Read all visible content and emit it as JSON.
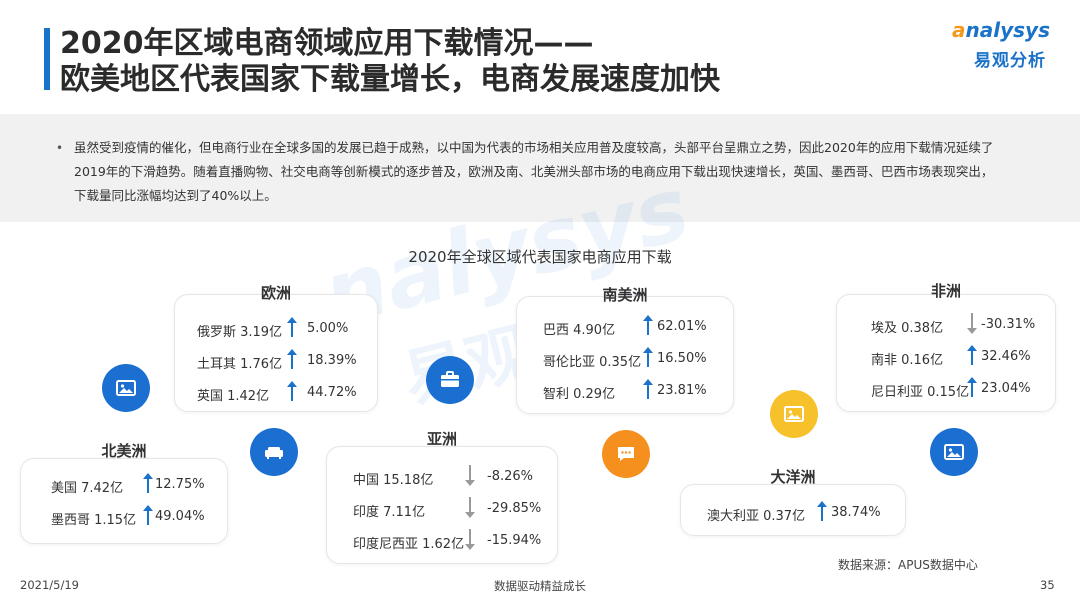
{
  "header": {
    "title_line1": "2020年区域电商领域应用下载情况——",
    "title_line2": "欧美地区代表国家下载量增长，电商发展速度加快"
  },
  "logo": {
    "en": "nalysys",
    "en_first": "a",
    "cn": "易观分析"
  },
  "watermark": {
    "en": "nalysys",
    "cn": "易观分析"
  },
  "summary": {
    "bullet": "•",
    "text": "虽然受到疫情的催化，但电商行业在全球多国的发展已趋于成熟，以中国为代表的市场相关应用普及度较高，头部平台呈鼎立之势，因此2020年的应用下载情况延续了2019年的下滑趋势。随着直播购物、社交电商等创新模式的逐步普及，欧洲及南、北美洲头部市场的电商应用下载出现快速增长，英国、墨西哥、巴西市场表现突出，下载量同比涨幅均达到了40%以上。"
  },
  "chart_data": {
    "type": "table",
    "title": "2020年全球区域代表国家电商应用下载",
    "regions": [
      {
        "name": "欧洲",
        "rows": [
          {
            "country": "俄罗斯",
            "downloads": "3.19亿",
            "growth": "5.00%",
            "direction": "up"
          },
          {
            "country": "土耳其",
            "downloads": "1.76亿",
            "growth": "18.39%",
            "direction": "up"
          },
          {
            "country": "英国",
            "downloads": "1.42亿",
            "growth": "44.72%",
            "direction": "up"
          }
        ]
      },
      {
        "name": "北美洲",
        "rows": [
          {
            "country": "美国",
            "downloads": "7.42亿",
            "growth": "12.75%",
            "direction": "up"
          },
          {
            "country": "墨西哥",
            "downloads": "1.15亿",
            "growth": "49.04%",
            "direction": "up"
          }
        ]
      },
      {
        "name": "亚洲",
        "rows": [
          {
            "country": "中国",
            "downloads": "15.18亿",
            "growth": "-8.26%",
            "direction": "down"
          },
          {
            "country": "印度",
            "downloads": "7.11亿",
            "growth": "-29.85%",
            "direction": "down"
          },
          {
            "country": "印度尼西亚",
            "downloads": "1.62亿",
            "growth": "-15.94%",
            "direction": "down"
          }
        ]
      },
      {
        "name": "南美洲",
        "rows": [
          {
            "country": "巴西",
            "downloads": "4.90亿",
            "growth": "62.01%",
            "direction": "up"
          },
          {
            "country": "哥伦比亚",
            "downloads": "0.35亿",
            "growth": "16.50%",
            "direction": "up"
          },
          {
            "country": "智利",
            "downloads": "0.29亿",
            "growth": "23.81%",
            "direction": "up"
          }
        ]
      },
      {
        "name": "大洋洲",
        "rows": [
          {
            "country": "澳大利亚",
            "downloads": "0.37亿",
            "growth": "38.74%",
            "direction": "up"
          }
        ]
      },
      {
        "name": "非洲",
        "rows": [
          {
            "country": "埃及",
            "downloads": "0.38亿",
            "growth": "-30.31%",
            "direction": "down"
          },
          {
            "country": "南非",
            "downloads": "0.16亿",
            "growth": "32.46%",
            "direction": "up"
          },
          {
            "country": "尼日利亚",
            "downloads": "0.15亿",
            "growth": "23.04%",
            "direction": "up"
          }
        ]
      }
    ]
  },
  "colors": {
    "accent": "#1a73c9",
    "orange": "#f5901e",
    "yellow": "#f6c12a",
    "up_arrow": "#1a73c9",
    "down_arrow": "#999999"
  },
  "icons": [
    "image-icon",
    "sofa-icon",
    "briefcase-icon",
    "chat-icon",
    "image-icon",
    "image-icon"
  ],
  "source": "数据来源：APUS数据中心",
  "footer": {
    "date": "2021/5/19",
    "slogan": "数据驱动精益成长",
    "page": "35"
  }
}
